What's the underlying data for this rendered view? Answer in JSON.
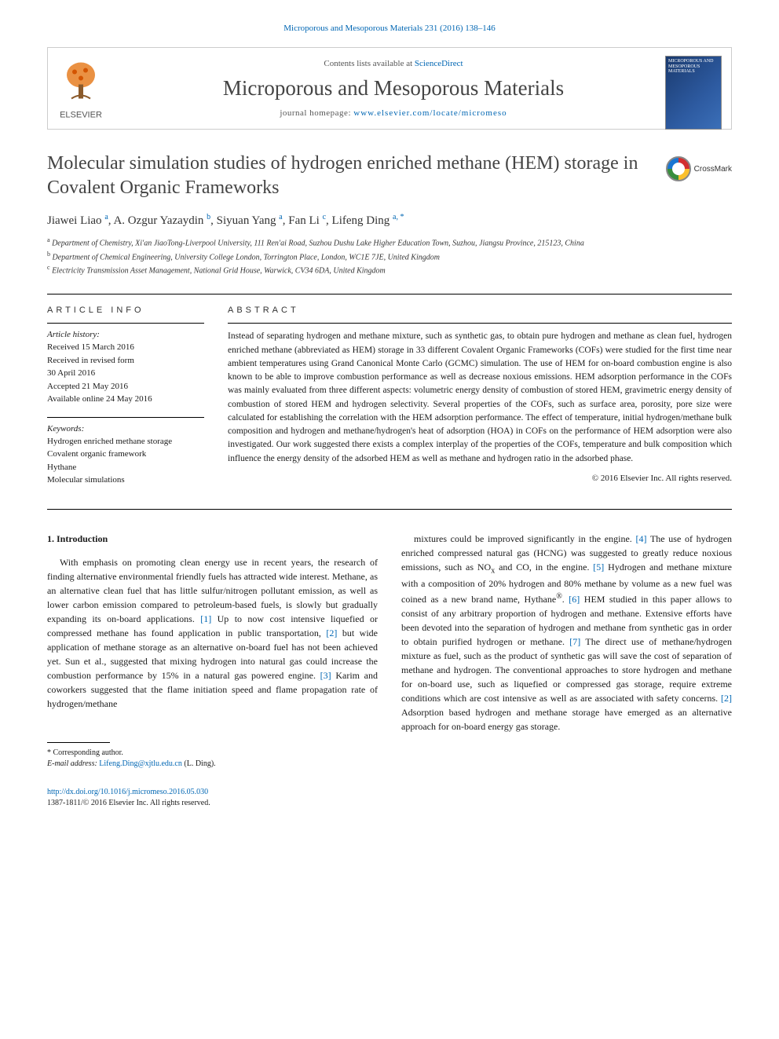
{
  "citation": "Microporous and Mesoporous Materials 231 (2016) 138–146",
  "topbox": {
    "contents_prefix": "Contents lists available at ",
    "contents_link": "ScienceDirect",
    "journal_name": "Microporous and Mesoporous Materials",
    "homepage_prefix": "journal homepage: ",
    "homepage_url": "www.elsevier.com/locate/micromeso",
    "publisher": "ELSEVIER",
    "cover_title": "MICROPOROUS AND MESOPOROUS MATERIALS"
  },
  "title": "Molecular simulation studies of hydrogen enriched methane (HEM) storage in Covalent Organic Frameworks",
  "crossmark_label": "CrossMark",
  "authors_html": "Jiawei Liao <sup class='sup'>a</sup>, A. Ozgur Yazaydin <sup class='sup'>b</sup>, Siyuan Yang <sup class='sup'>a</sup>, Fan Li <sup class='sup'>c</sup>, Lifeng Ding <sup class='sup'>a, *</sup>",
  "affiliations": [
    {
      "sup": "a",
      "text": "Department of Chemistry, Xi'an JiaoTong-Liverpool University, 111 Ren'ai Road, Suzhou Dushu Lake Higher Education Town, Suzhou, Jiangsu Province, 215123, China"
    },
    {
      "sup": "b",
      "text": "Department of Chemical Engineering, University College London, Torrington Place, London, WC1E 7JE, United Kingdom"
    },
    {
      "sup": "c",
      "text": "Electricity Transmission Asset Management, National Grid House, Warwick, CV34 6DA, United Kingdom"
    }
  ],
  "info": {
    "heading": "ARTICLE INFO",
    "history_label": "Article history:",
    "history": [
      "Received 15 March 2016",
      "Received in revised form",
      "30 April 2016",
      "Accepted 21 May 2016",
      "Available online 24 May 2016"
    ],
    "keywords_label": "Keywords:",
    "keywords": [
      "Hydrogen enriched methane storage",
      "Covalent organic framework",
      "Hythane",
      "Molecular simulations"
    ]
  },
  "abstract": {
    "heading": "ABSTRACT",
    "text": "Instead of separating hydrogen and methane mixture, such as synthetic gas, to obtain pure hydrogen and methane as clean fuel, hydrogen enriched methane (abbreviated as HEM) storage in 33 different Covalent Organic Frameworks (COFs) were studied for the first time near ambient temperatures using Grand Canonical Monte Carlo (GCMC) simulation. The use of HEM for on-board combustion engine is also known to be able to improve combustion performance as well as decrease noxious emissions. HEM adsorption performance in the COFs was mainly evaluated from three different aspects: volumetric energy density of combustion of stored HEM, gravimetric energy density of combustion of stored HEM and hydrogen selectivity. Several properties of the COFs, such as surface area, porosity, pore size were calculated for establishing the correlation with the HEM adsorption performance. The effect of temperature, initial hydrogen/methane bulk composition and hydrogen and methane/hydrogen's heat of adsorption (HOA) in COFs on the performance of HEM adsorption were also investigated. Our work suggested there exists a complex interplay of the properties of the COFs, temperature and bulk composition which influence the energy density of the adsorbed HEM as well as methane and hydrogen ratio in the adsorbed phase.",
    "copyright": "© 2016 Elsevier Inc. All rights reserved."
  },
  "body": {
    "section_heading": "1. Introduction",
    "col1_html": "With emphasis on promoting clean energy use in recent years, the research of finding alternative environmental friendly fuels has attracted wide interest. Methane, as an alternative clean fuel that has little sulfur/nitrogen pollutant emission, as well as lower carbon emission compared to petroleum-based fuels, is slowly but gradually expanding its on-board applications. <span class='ref-link'>[1]</span> Up to now cost intensive liquefied or compressed methane has found application in public transportation, <span class='ref-link'>[2]</span> but wide application of methane storage as an alternative on-board fuel has not been achieved yet. Sun et al., suggested that mixing hydrogen into natural gas could increase the combustion performance by 15% in a natural gas powered engine. <span class='ref-link'>[3]</span> Karim and coworkers suggested that the flame initiation speed and flame propagation rate of hydrogen/methane",
    "col2_html": "mixtures could be improved significantly in the engine. <span class='ref-link'>[4]</span> The use of hydrogen enriched compressed natural gas (HCNG) was suggested to greatly reduce noxious emissions, such as NO<sub>x</sub> and CO, in the engine. <span class='ref-link'>[5]</span> Hydrogen and methane mixture with a composition of 20% hydrogen and 80% methane by volume as a new fuel was coined as a new brand name, Hythane<sup>®</sup>. <span class='ref-link'>[6]</span> HEM studied in this paper allows to consist of any arbitrary proportion of hydrogen and methane. Extensive efforts have been devoted into the separation of hydrogen and methane from synthetic gas in order to obtain purified hydrogen or methane. <span class='ref-link'>[7]</span> The direct use of methane/hydrogen mixture as fuel, such as the product of synthetic gas will save the cost of separation of methane and hydrogen. The conventional approaches to store hydrogen and methane for on-board use, such as liquefied or compressed gas storage, require extreme conditions which are cost intensive as well as are associated with safety concerns. <span class='ref-link'>[2]</span> Adsorption based hydrogen and methane storage have emerged as an alternative approach for on-board energy gas storage."
  },
  "footnote": {
    "corr": "* Corresponding author.",
    "email_label": "E-mail address: ",
    "email": "Lifeng.Ding@xjtlu.edu.cn",
    "email_suffix": " (L. Ding)."
  },
  "doi": {
    "url": "http://dx.doi.org/10.1016/j.micromeso.2016.05.030",
    "issn_line": "1387-1811/© 2016 Elsevier Inc. All rights reserved."
  },
  "colors": {
    "link": "#0066b3",
    "text": "#1a1a1a",
    "heading_gray": "#444444"
  }
}
